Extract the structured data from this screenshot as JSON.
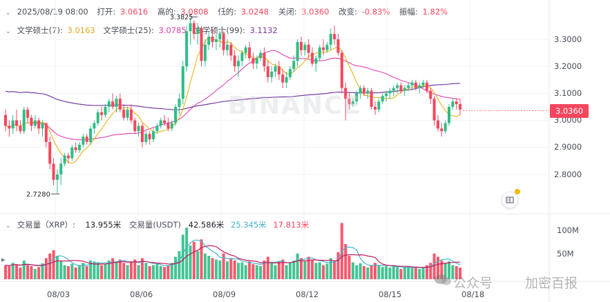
{
  "header": {
    "datetime": "2025/08/19 08:00",
    "open_label": "打开:",
    "open_value": "3.0616",
    "high_label": "高的:",
    "high_value": "3.0808",
    "low_label": "低的:",
    "low_value": "3.0248",
    "close_label": "关闭:",
    "close_value": "3.0360",
    "change_label": "改变:",
    "change_value": "-0.83%",
    "amplitude_label": "振幅:",
    "amplitude_value": "1.82%"
  },
  "ma_row": {
    "ma7_label": "文学硕士(7):",
    "ma7_value": "3.0163",
    "ma25_label": "文学硕士(25):",
    "ma25_value": "3.0785",
    "ma99_label": "文学硕士(99):",
    "ma99_value": "3.1132"
  },
  "volume_row": {
    "label": "交易量（XRP）:",
    "vol_xrp": "13.955米",
    "usdt_label": "交易量(USDT)",
    "vol_usdt": "42.586米",
    "ma1": "25.345米",
    "ma2": "17.813米"
  },
  "price_axis": [
    "3.3000",
    "3.2000",
    "3.1000",
    "3.0000",
    "2.9000",
    "2.8000"
  ],
  "volume_axis": [
    "100M",
    "50M"
  ],
  "date_axis": [
    "08/03",
    "08/06",
    "08/09",
    "08/12",
    "08/15",
    "08/18"
  ],
  "current_price": "3.0360",
  "min_label": "2.7280",
  "max_label": "3.3825",
  "watermark_main": "BINANCE",
  "watermark_footer_1": "公众号",
  "watermark_footer_2": "加密百报",
  "colors": {
    "up": "#2ebd85",
    "down": "#f6465d",
    "ma7": "#e8b21a",
    "ma25": "#e040b0",
    "ma99": "#6b2a9b",
    "vol_ma_teal": "#43b2cc",
    "vol_ma_red": "#c2185b"
  },
  "chart_data": {
    "type": "candlestick",
    "ylim": [
      2.7,
      3.4
    ],
    "volume_ylim": [
      0,
      125
    ],
    "x_count": 136,
    "ohlc": [
      [
        3.02,
        3.04,
        2.96,
        2.98
      ],
      [
        2.98,
        3.0,
        2.94,
        2.97
      ],
      [
        2.97,
        3.02,
        2.95,
        3.0
      ],
      [
        3.0,
        3.04,
        2.96,
        2.98
      ],
      [
        2.98,
        3.0,
        2.95,
        2.96
      ],
      [
        2.96,
        3.05,
        2.95,
        3.04
      ],
      [
        3.04,
        3.05,
        2.99,
        3.01
      ],
      [
        3.01,
        3.02,
        2.96,
        2.98
      ],
      [
        2.98,
        3.02,
        2.97,
        3.0
      ],
      [
        3.0,
        3.01,
        2.95,
        2.97
      ],
      [
        2.97,
        3.0,
        2.94,
        2.99
      ],
      [
        2.99,
        2.99,
        2.9,
        2.92
      ],
      [
        2.92,
        2.94,
        2.82,
        2.84
      ],
      [
        2.84,
        2.86,
        2.76,
        2.78
      ],
      [
        2.78,
        2.82,
        2.73,
        2.8
      ],
      [
        2.8,
        2.86,
        2.76,
        2.84
      ],
      [
        2.84,
        2.88,
        2.83,
        2.87
      ],
      [
        2.87,
        2.88,
        2.84,
        2.86
      ],
      [
        2.86,
        2.91,
        2.85,
        2.9
      ],
      [
        2.9,
        2.92,
        2.88,
        2.89
      ],
      [
        2.89,
        2.92,
        2.88,
        2.91
      ],
      [
        2.91,
        2.95,
        2.9,
        2.94
      ],
      [
        2.94,
        2.95,
        2.91,
        2.92
      ],
      [
        2.92,
        2.98,
        2.91,
        2.97
      ],
      [
        2.97,
        3.0,
        2.95,
        2.99
      ],
      [
        2.99,
        3.04,
        2.98,
        3.03
      ],
      [
        3.03,
        3.05,
        3.0,
        3.02
      ],
      [
        3.02,
        3.06,
        3.01,
        3.05
      ],
      [
        3.05,
        3.08,
        3.03,
        3.07
      ],
      [
        3.07,
        3.1,
        3.04,
        3.05
      ],
      [
        3.05,
        3.09,
        3.03,
        3.08
      ],
      [
        3.08,
        3.1,
        3.03,
        3.04
      ],
      [
        3.04,
        3.06,
        3.0,
        3.01
      ],
      [
        3.01,
        3.05,
        3.0,
        3.04
      ],
      [
        3.04,
        3.06,
        2.99,
        3.0
      ],
      [
        3.0,
        3.01,
        2.95,
        2.96
      ],
      [
        2.96,
        2.99,
        2.94,
        2.98
      ],
      [
        2.98,
        2.99,
        2.9,
        2.92
      ],
      [
        2.92,
        2.96,
        2.91,
        2.95
      ],
      [
        2.95,
        2.96,
        2.91,
        2.93
      ],
      [
        2.93,
        2.97,
        2.92,
        2.96
      ],
      [
        2.96,
        2.99,
        2.95,
        2.98
      ],
      [
        2.98,
        3.01,
        2.97,
        3.0
      ],
      [
        3.0,
        3.02,
        2.98,
        2.99
      ],
      [
        2.99,
        3.01,
        2.96,
        2.97
      ],
      [
        2.97,
        3.0,
        2.96,
        2.99
      ],
      [
        2.99,
        3.06,
        2.98,
        3.05
      ],
      [
        3.05,
        3.1,
        3.02,
        3.08
      ],
      [
        3.08,
        3.22,
        3.06,
        3.2
      ],
      [
        3.2,
        3.35,
        3.18,
        3.33
      ],
      [
        3.33,
        3.38,
        3.28,
        3.36
      ],
      [
        3.36,
        3.37,
        3.3,
        3.32
      ],
      [
        3.32,
        3.36,
        3.28,
        3.34
      ],
      [
        3.34,
        3.35,
        3.2,
        3.22
      ],
      [
        3.22,
        3.3,
        3.2,
        3.28
      ],
      [
        3.28,
        3.33,
        3.26,
        3.31
      ],
      [
        3.31,
        3.34,
        3.27,
        3.29
      ],
      [
        3.29,
        3.32,
        3.26,
        3.3
      ],
      [
        3.3,
        3.33,
        3.27,
        3.32
      ],
      [
        3.32,
        3.33,
        3.24,
        3.26
      ],
      [
        3.26,
        3.3,
        3.24,
        3.28
      ],
      [
        3.28,
        3.29,
        3.22,
        3.24
      ],
      [
        3.24,
        3.26,
        3.18,
        3.2
      ],
      [
        3.2,
        3.24,
        3.16,
        3.22
      ],
      [
        3.22,
        3.26,
        3.2,
        3.25
      ],
      [
        3.25,
        3.28,
        3.23,
        3.27
      ],
      [
        3.27,
        3.29,
        3.22,
        3.23
      ],
      [
        3.23,
        3.25,
        3.19,
        3.21
      ],
      [
        3.21,
        3.24,
        3.19,
        3.23
      ],
      [
        3.23,
        3.26,
        3.22,
        3.25
      ],
      [
        3.25,
        3.27,
        3.18,
        3.2
      ],
      [
        3.2,
        3.22,
        3.14,
        3.16
      ],
      [
        3.16,
        3.2,
        3.14,
        3.18
      ],
      [
        3.18,
        3.21,
        3.16,
        3.2
      ],
      [
        3.2,
        3.22,
        3.15,
        3.17
      ],
      [
        3.17,
        3.19,
        3.12,
        3.14
      ],
      [
        3.14,
        3.18,
        3.12,
        3.16
      ],
      [
        3.16,
        3.2,
        3.15,
        3.19
      ],
      [
        3.19,
        3.24,
        3.18,
        3.22
      ],
      [
        3.22,
        3.3,
        3.2,
        3.29
      ],
      [
        3.29,
        3.31,
        3.24,
        3.26
      ],
      [
        3.26,
        3.29,
        3.24,
        3.28
      ],
      [
        3.28,
        3.3,
        3.23,
        3.25
      ],
      [
        3.25,
        3.27,
        3.2,
        3.21
      ],
      [
        3.21,
        3.24,
        3.18,
        3.23
      ],
      [
        3.23,
        3.28,
        3.22,
        3.27
      ],
      [
        3.27,
        3.3,
        3.24,
        3.26
      ],
      [
        3.26,
        3.29,
        3.25,
        3.28
      ],
      [
        3.28,
        3.34,
        3.26,
        3.32
      ],
      [
        3.32,
        3.35,
        3.28,
        3.3
      ],
      [
        3.3,
        3.32,
        3.24,
        3.25
      ],
      [
        3.25,
        3.26,
        3.1,
        3.12
      ],
      [
        3.12,
        3.14,
        3.0,
        3.08
      ],
      [
        3.08,
        3.1,
        3.04,
        3.06
      ],
      [
        3.06,
        3.08,
        3.05,
        3.07
      ],
      [
        3.07,
        3.11,
        3.06,
        3.1
      ],
      [
        3.1,
        3.13,
        3.08,
        3.12
      ],
      [
        3.12,
        3.13,
        3.09,
        3.1
      ],
      [
        3.1,
        3.12,
        3.08,
        3.11
      ],
      [
        3.11,
        3.12,
        3.04,
        3.05
      ],
      [
        3.05,
        3.07,
        3.02,
        3.04
      ],
      [
        3.04,
        3.08,
        3.03,
        3.07
      ],
      [
        3.07,
        3.1,
        3.06,
        3.09
      ],
      [
        3.09,
        3.11,
        3.07,
        3.1
      ],
      [
        3.1,
        3.12,
        3.08,
        3.11
      ],
      [
        3.11,
        3.13,
        3.09,
        3.12
      ],
      [
        3.12,
        3.14,
        3.1,
        3.13
      ],
      [
        3.13,
        3.14,
        3.1,
        3.11
      ],
      [
        3.11,
        3.13,
        3.09,
        3.12
      ],
      [
        3.12,
        3.14,
        3.11,
        3.13
      ],
      [
        3.13,
        3.15,
        3.11,
        3.14
      ],
      [
        3.14,
        3.15,
        3.11,
        3.12
      ],
      [
        3.12,
        3.14,
        3.1,
        3.13
      ],
      [
        3.13,
        3.15,
        3.12,
        3.14
      ],
      [
        3.14,
        3.15,
        3.1,
        3.11
      ],
      [
        3.11,
        3.12,
        3.06,
        3.08
      ],
      [
        3.08,
        3.09,
        2.98,
        3.0
      ],
      [
        3.0,
        3.02,
        2.96,
        2.97
      ],
      [
        2.97,
        2.99,
        2.94,
        2.96
      ],
      [
        2.96,
        3.0,
        2.95,
        2.99
      ],
      [
        2.99,
        3.06,
        2.98,
        3.05
      ],
      [
        3.05,
        3.08,
        3.04,
        3.07
      ],
      [
        3.07,
        3.08,
        3.04,
        3.06
      ],
      [
        3.06,
        3.08,
        3.02,
        3.04
      ]
    ],
    "volume": [
      30,
      28,
      35,
      32,
      25,
      40,
      30,
      28,
      22,
      26,
      34,
      45,
      55,
      62,
      50,
      38,
      30,
      28,
      33,
      25,
      30,
      35,
      28,
      40,
      38,
      36,
      30,
      32,
      40,
      45,
      38,
      42,
      35,
      30,
      38,
      42,
      30,
      45,
      35,
      28,
      30,
      33,
      28,
      26,
      30,
      35,
      48,
      60,
      95,
      110,
      72,
      80,
      60,
      85,
      55,
      50,
      45,
      42,
      40,
      55,
      38,
      45,
      40,
      35,
      36,
      30,
      38,
      32,
      30,
      28,
      40,
      48,
      35,
      30,
      38,
      42,
      30,
      36,
      40,
      55,
      45,
      38,
      48,
      42,
      35,
      36,
      30,
      33,
      45,
      40,
      58,
      120,
      75,
      50,
      36,
      30,
      34,
      28,
      25,
      30,
      35,
      30,
      26,
      28,
      25,
      30,
      26,
      22,
      25,
      28,
      24,
      26,
      22,
      25,
      30,
      35,
      55,
      48,
      40,
      35,
      38,
      30,
      28,
      25
    ],
    "vol_up_flags": "see ohlc"
  }
}
